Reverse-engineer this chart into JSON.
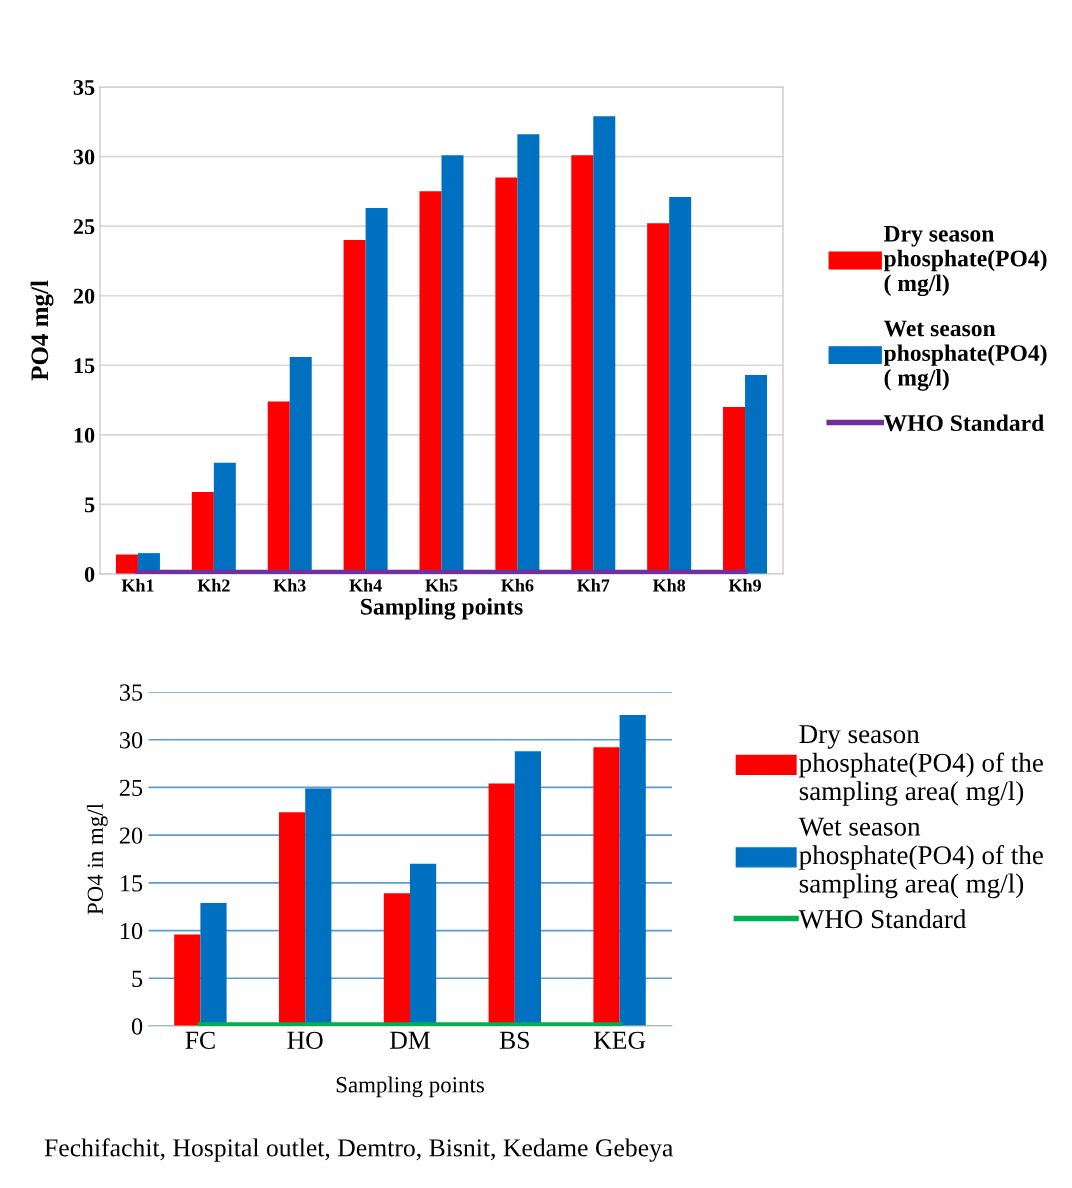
{
  "chart_data": [
    {
      "type": "bar",
      "ylabel": "PO4 mg/l",
      "xlabel": "Sampling points",
      "categories": [
        "Kh1",
        "Kh2",
        "Kh3",
        "Kh4",
        "Kh5",
        "Kh6",
        "Kh7",
        "Kh8",
        "Kh9"
      ],
      "ylim": [
        0,
        35
      ],
      "yticks": [
        0,
        5,
        10,
        15,
        20,
        25,
        30,
        35
      ],
      "grid": "y",
      "legend": "right",
      "series": [
        {
          "name": "Dry season phosphate(PO4) ( mg/l)",
          "color": "#ff0000",
          "values": [
            1.4,
            5.9,
            12.4,
            24.0,
            27.5,
            28.5,
            30.1,
            25.2,
            12.0
          ]
        },
        {
          "name": "Wet season phosphate(PO4) ( mg/l)",
          "color": "#0070c0",
          "values": [
            1.5,
            8.0,
            15.6,
            26.3,
            30.1,
            31.6,
            32.9,
            27.1,
            14.3
          ]
        },
        {
          "name": "WHO Standard",
          "type": "line",
          "color": "#7030a0",
          "values": [
            0.1,
            0.1,
            0.1,
            0.1,
            0.1,
            0.1,
            0.1,
            0.1,
            0.1
          ]
        }
      ]
    },
    {
      "type": "bar",
      "ylabel": "PO4 in mg/l",
      "xlabel": "Sampling points",
      "categories": [
        "FC",
        "HO",
        "DM",
        "BS",
        "KEG"
      ],
      "ylim": [
        0,
        35
      ],
      "yticks": [
        0,
        5,
        10,
        15,
        20,
        25,
        30,
        35
      ],
      "grid": "y",
      "legend": "right",
      "annotations": [
        "Fechifachit, Hospital outlet, Demtro, Bisnit, Kedame Gebeya"
      ],
      "series": [
        {
          "name": "Dry season phosphate(PO4) of the sampling area( mg/l)",
          "color": "#ff0000",
          "values": [
            9.6,
            22.4,
            13.9,
            25.4,
            29.2
          ]
        },
        {
          "name": "Wet season phosphate(PO4) of the sampling area( mg/l)",
          "color": "#0070c0",
          "values": [
            12.9,
            24.9,
            17.0,
            28.8,
            32.6
          ]
        },
        {
          "name": "WHO Standard",
          "type": "line",
          "color": "#00b050",
          "values": [
            0.1,
            0.1,
            0.1,
            0.1,
            0.1
          ]
        }
      ]
    }
  ]
}
